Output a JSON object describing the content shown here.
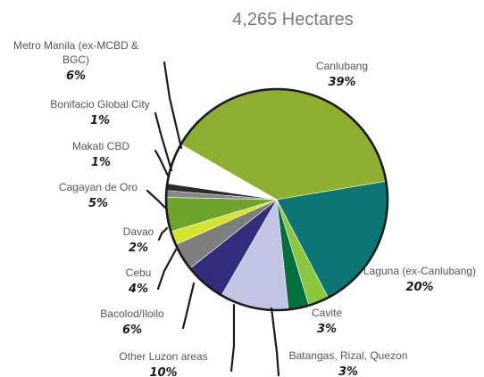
{
  "chart_data": {
    "type": "pie",
    "title": "4,265 Hectares",
    "slices": [
      {
        "name": "Canlubang",
        "label": "39%",
        "value": 39,
        "color": "#8eae2f"
      },
      {
        "name": "Laguna (ex-Canlubang)",
        "label": "20%",
        "value": 20,
        "color": "#0b7673"
      },
      {
        "name": "Cavite",
        "label": "3%",
        "value": 3,
        "color": "#8cc63f"
      },
      {
        "name": "Batangas, Rizal, Quezon",
        "label": "3%",
        "value": 3,
        "color": "#00703c"
      },
      {
        "name": "Other Luzon areas",
        "label": "10%",
        "value": 10,
        "color": "#c3c3e4"
      },
      {
        "name": "Bacolod/Iloilo",
        "label": "6%",
        "value": 6,
        "color": "#332d7e"
      },
      {
        "name": "Cebu",
        "label": "4%",
        "value": 4,
        "color": "#7e7e7e"
      },
      {
        "name": "Davao",
        "label": "2%",
        "value": 2,
        "color": "#d7e22b"
      },
      {
        "name": "Cagayan de Oro",
        "label": "5%",
        "value": 5,
        "color": "#6ea32e"
      },
      {
        "name": "Makati CBD",
        "label": "1%",
        "value": 1,
        "color": "#878787"
      },
      {
        "name": "Bonifacio Global City",
        "label": "1%",
        "value": 1,
        "color": "#2b2b2b"
      },
      {
        "name": "Metro Manila (ex-MCBD & BGC)",
        "label": "6%",
        "value": 6,
        "color": "#ffffff"
      }
    ]
  }
}
